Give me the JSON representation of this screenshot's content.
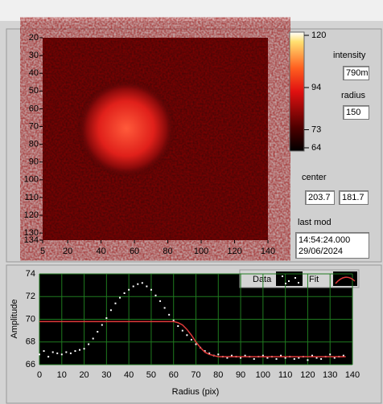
{
  "intensity_graph": {
    "type": "heatmap",
    "xlim": [
      5,
      140
    ],
    "xticks": [
      5,
      20,
      40,
      60,
      80,
      100,
      120,
      140
    ],
    "ylim": [
      20,
      134
    ],
    "yticks": [
      20,
      30,
      40,
      50,
      60,
      70,
      80,
      90,
      100,
      110,
      120,
      130,
      134
    ],
    "colorbar": {
      "zlim": [
        64,
        120
      ],
      "zticks": [
        64,
        73,
        94,
        120
      ]
    }
  },
  "controls": {
    "intensity_label": "intensity",
    "intensity_value": "790m",
    "radius_label": "radius",
    "radius_value": "150",
    "center_label": "center",
    "center_x": "203.7",
    "center_y": "181.7",
    "last_mod_label": "last mod",
    "last_mod_time": "14:54:24.000",
    "last_mod_date": "29/06/2024"
  },
  "chart_data": {
    "type": "scatter",
    "xlabel": "Radius (pix)",
    "ylabel": "Amplitude",
    "xlim": [
      0,
      140
    ],
    "xticks": [
      0,
      10,
      20,
      30,
      40,
      50,
      60,
      70,
      80,
      90,
      100,
      110,
      120,
      130,
      140
    ],
    "ylim": [
      66,
      74
    ],
    "yticks": [
      66,
      68,
      70,
      72,
      74
    ],
    "grid": true,
    "series": [
      {
        "name": "Data",
        "color": "#ffffff",
        "mode": "points",
        "x": [
          0,
          2,
          4,
          6,
          8,
          10,
          12,
          14,
          16,
          18,
          20,
          22,
          24,
          26,
          28,
          30,
          32,
          34,
          36,
          38,
          40,
          42,
          44,
          46,
          48,
          50,
          52,
          54,
          56,
          58,
          60,
          62,
          64,
          66,
          68,
          70,
          72,
          74,
          76,
          78,
          80,
          82,
          84,
          86,
          88,
          90,
          92,
          94,
          96,
          98,
          100,
          102,
          104,
          106,
          108,
          110,
          112,
          114,
          116,
          118,
          120,
          122,
          124,
          126,
          128,
          130,
          132,
          134,
          136
        ],
        "values": [
          66.9,
          67.2,
          66.7,
          67.1,
          67.0,
          66.9,
          67.1,
          67.0,
          67.2,
          67.3,
          67.4,
          67.8,
          68.3,
          68.9,
          69.5,
          70.1,
          70.8,
          71.4,
          71.9,
          72.3,
          72.6,
          72.9,
          73.1,
          73.2,
          72.9,
          72.6,
          72.1,
          71.6,
          71.0,
          70.4,
          69.9,
          69.4,
          69.0,
          68.6,
          68.2,
          67.8,
          67.5,
          67.2,
          67.0,
          66.8,
          66.9,
          66.7,
          66.6,
          66.8,
          66.7,
          66.6,
          66.8,
          66.7,
          66.5,
          66.7,
          66.8,
          66.6,
          66.7,
          66.5,
          66.8,
          66.6,
          66.7,
          66.5,
          66.6,
          66.7,
          66.4,
          66.8,
          66.6,
          66.5,
          66.7,
          66.9,
          66.6,
          66.7,
          66.8
        ]
      },
      {
        "name": "Fit",
        "color": "#e03a3a",
        "mode": "line",
        "x": [
          0,
          60,
          62,
          64,
          66,
          68,
          70,
          72,
          74,
          76,
          78,
          80,
          137
        ],
        "values": [
          69.8,
          69.8,
          69.7,
          69.5,
          69.1,
          68.6,
          68.0,
          67.5,
          67.1,
          66.9,
          66.8,
          66.7,
          66.7
        ]
      }
    ]
  }
}
